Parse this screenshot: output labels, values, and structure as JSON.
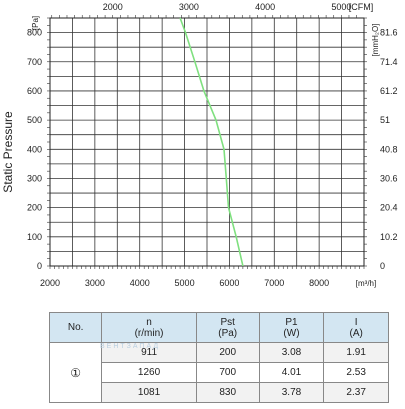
{
  "chart_data": {
    "type": "line",
    "ylabel": "Static Pressure",
    "y_unit_left": "[Pa]",
    "y_unit_right": "[mmH₂O]",
    "x_unit_bottom": "[m³/h]",
    "x_unit_top": "[CFM]",
    "xlim": [
      2000,
      9000
    ],
    "ylim": [
      0,
      850
    ],
    "x_ticks": [
      "2000",
      "3000",
      "4000",
      "5000",
      "6000",
      "7000",
      "8000"
    ],
    "y_ticks": [
      "0",
      "100",
      "200",
      "300",
      "400",
      "500",
      "600",
      "700",
      "800"
    ],
    "right_ticks": [
      "0",
      "10.2",
      "20.4",
      "30.6",
      "40.8",
      "51",
      "61.2",
      "71.4",
      "81.6"
    ],
    "top_ticks": [
      "2000",
      "3000",
      "4000",
      "5000"
    ],
    "grid": true,
    "series": [
      {
        "color": "#7fe07f",
        "x": [
          6300,
          6150,
          5980,
          5930,
          5880,
          5700,
          5430,
          5230,
          5020,
          4900
        ],
        "y": [
          0,
          100,
          200,
          300,
          400,
          500,
          600,
          700,
          800,
          850
        ]
      }
    ]
  },
  "table": {
    "headers": [
      {
        "name": "No.",
        "unit": ""
      },
      {
        "name": "n",
        "unit": "(r/min)"
      },
      {
        "name": "Pst",
        "unit": "(Pa)"
      },
      {
        "name": "P1",
        "unit": "(W)"
      },
      {
        "name": "I",
        "unit": "(A)"
      }
    ],
    "no_label": "①",
    "rows": [
      [
        "911",
        "200",
        "3.08",
        "1.91"
      ],
      [
        "1260",
        "700",
        "4.01",
        "2.53"
      ],
      [
        "1081",
        "830",
        "3.78",
        "2.37"
      ]
    ]
  },
  "watermark": "ВЕНТЗАПАД"
}
